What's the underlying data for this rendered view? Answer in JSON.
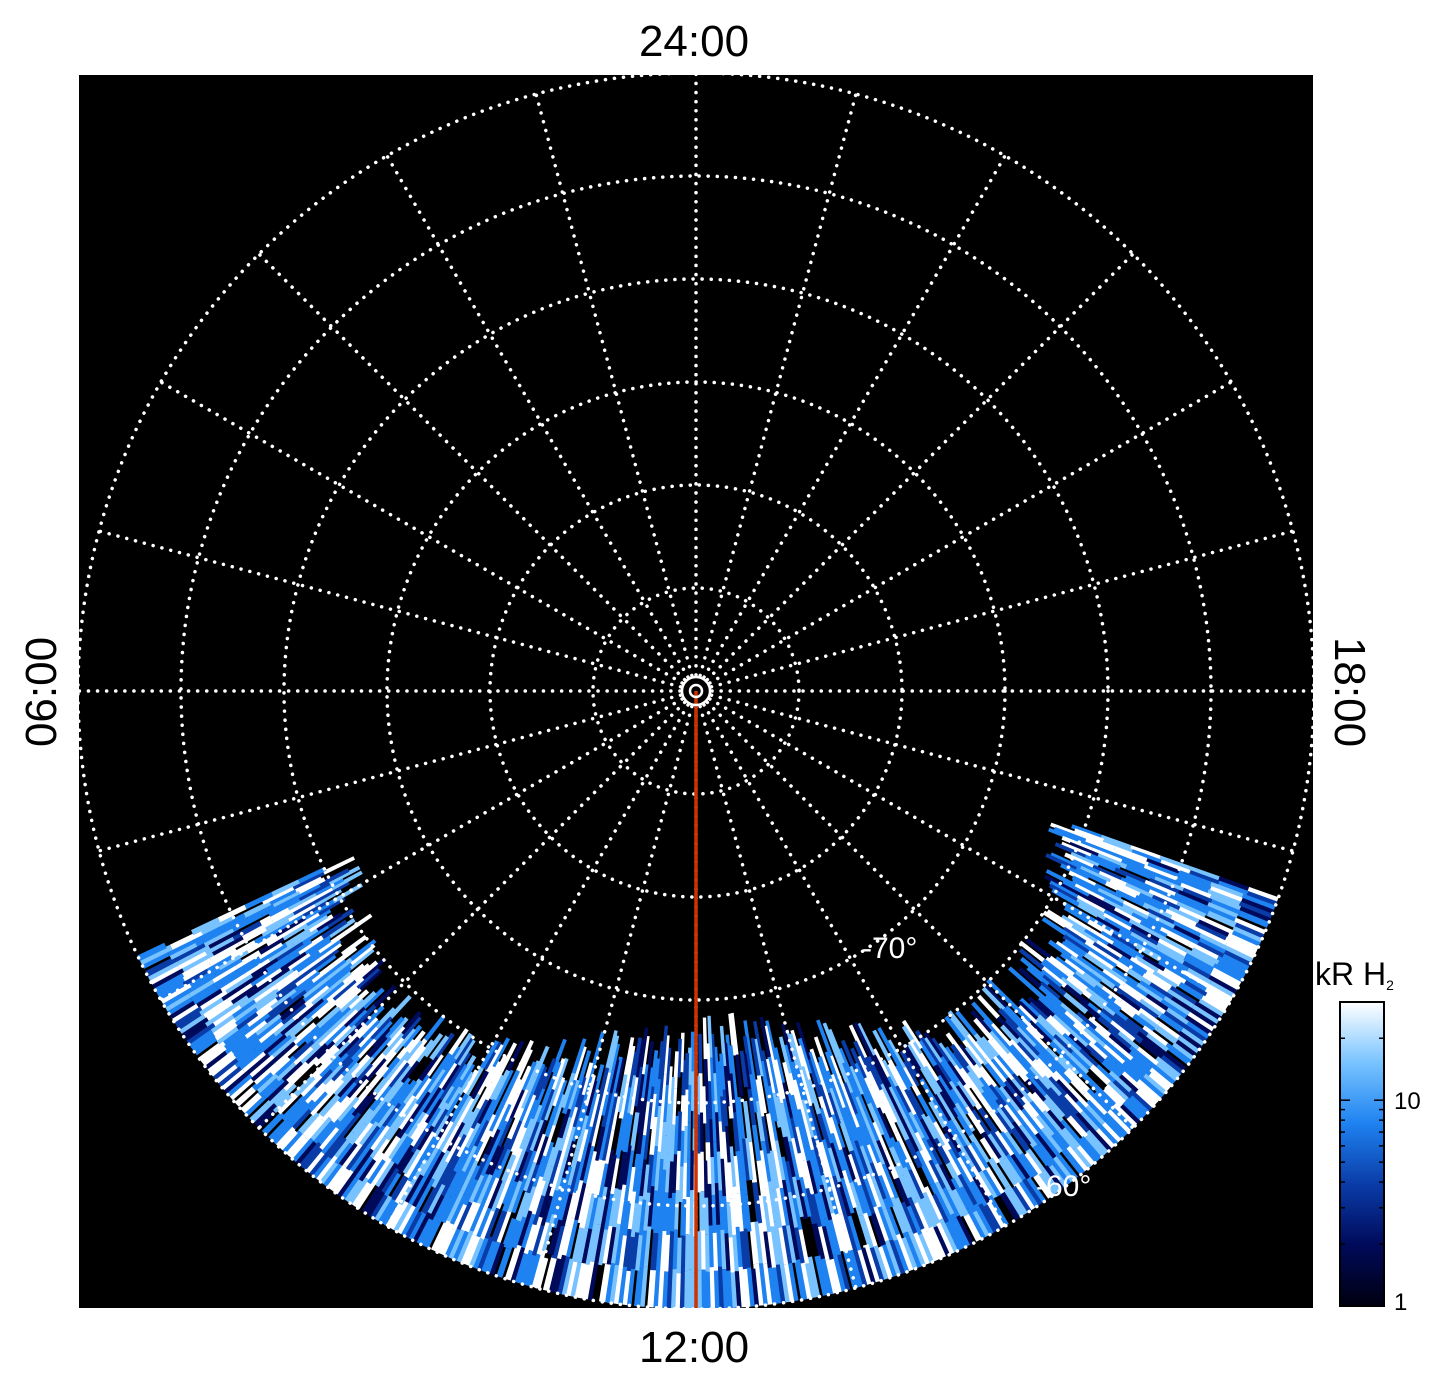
{
  "chart_data": {
    "type": "heatmap",
    "projection": "polar",
    "hemisphere": "south",
    "local_time_labels": {
      "top": "24:00",
      "bottom": "12:00",
      "left": "06:00",
      "right": "18:00"
    },
    "latitude_circles_deg": [
      -60,
      -65,
      -70,
      -75,
      -80,
      -85
    ],
    "latitude_labels": [
      {
        "value": -70,
        "text": "-70°",
        "local_time_hours": 15.5
      },
      {
        "value": -60,
        "text": "-60°",
        "local_time_hours": 15.2
      }
    ],
    "lon_grid_step_hours": 1,
    "grid": true,
    "grid_style": "dotted",
    "grid_color": "#ffffff",
    "background_color": "#000000",
    "reference_line": {
      "local_time_hours": 12,
      "color": "#cc3300"
    },
    "emission_region": {
      "lat_range_deg": [
        -71,
        -60
      ],
      "local_time_range_hours": [
        7.3,
        16.3
      ],
      "description_colormap": "blue-white"
    },
    "colorbar": {
      "title": "kR H",
      "title_subscript": "2",
      "scale": "log",
      "range": [
        1,
        30
      ],
      "ticks": [
        {
          "value": 1,
          "label": "1"
        },
        {
          "value": 10,
          "label": "10"
        }
      ],
      "colors": [
        "#000010",
        "#000a5a",
        "#0a3ca8",
        "#1e82f0",
        "#78c3ff",
        "#ffffff"
      ]
    }
  }
}
